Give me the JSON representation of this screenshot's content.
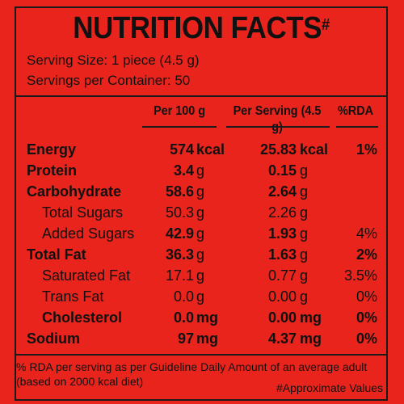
{
  "label": {
    "title": "NUTRITION FACTS",
    "title_mark": "#",
    "serving_size": "Serving Size: 1 piece (4.5 g)",
    "servings_per_container": "Servings per Container: 50",
    "headers": {
      "per100": "Per 100 g",
      "perServing": "Per Serving (4.5 g)",
      "rda": "%RDA"
    },
    "rows": [
      {
        "name": "Energy",
        "v100": "574",
        "u100": "kcal",
        "vsrv": "25.83",
        "usrv": "kcal",
        "rda": "1%"
      },
      {
        "name": "Protein",
        "v100": "3.4",
        "u100": "g",
        "vsrv": "0.15",
        "usrv": "g",
        "rda": ""
      },
      {
        "name": "Carbohydrate",
        "v100": "58.6",
        "u100": "g",
        "vsrv": "2.64",
        "usrv": "g",
        "rda": ""
      },
      {
        "name": "Total Sugars",
        "v100": "50.3",
        "u100": "g",
        "vsrv": "2.26",
        "usrv": "g",
        "rda": ""
      },
      {
        "name": "Added Sugars",
        "v100": "42.9",
        "u100": "g",
        "vsrv": "1.93",
        "usrv": "g",
        "rda": "4%"
      },
      {
        "name": "Total Fat",
        "v100": "36.3",
        "u100": "g",
        "vsrv": "1.63",
        "usrv": "g",
        "rda": "2%"
      },
      {
        "name": "Saturated Fat",
        "v100": "17.1",
        "u100": "g",
        "vsrv": "0.77",
        "usrv": "g",
        "rda": "3.5%"
      },
      {
        "name": "Trans Fat",
        "v100": "0.0",
        "u100": "g",
        "vsrv": "0.00",
        "usrv": "g",
        "rda": "0%"
      },
      {
        "name": "Cholesterol",
        "v100": "0.0",
        "u100": "mg",
        "vsrv": "0.00",
        "usrv": "mg",
        "rda": "0%"
      },
      {
        "name": "Sodium",
        "v100": "97",
        "u100": "mg",
        "vsrv": "4.37",
        "usrv": "mg",
        "rda": "0%"
      }
    ],
    "footer_line1": "% RDA per serving as per Guideline Daily Amount of an average adult",
    "footer_line2": "(based on 2000 kcal diet)",
    "approx_note": "#Approximate Values"
  }
}
